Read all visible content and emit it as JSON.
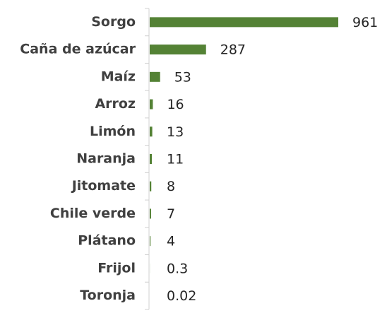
{
  "chart_data": {
    "type": "bar",
    "orientation": "horizontal",
    "categories": [
      "Sorgo",
      "Caña de azúcar",
      "Maíz",
      "Arroz",
      "Limón",
      "Naranja",
      "Jitomate",
      "Chile verde",
      "Plátano",
      "Frijol",
      "Toronja"
    ],
    "values": [
      961,
      287,
      53,
      16,
      13,
      11,
      8,
      7,
      4,
      0.3,
      0.02
    ],
    "color": "#548235"
  }
}
